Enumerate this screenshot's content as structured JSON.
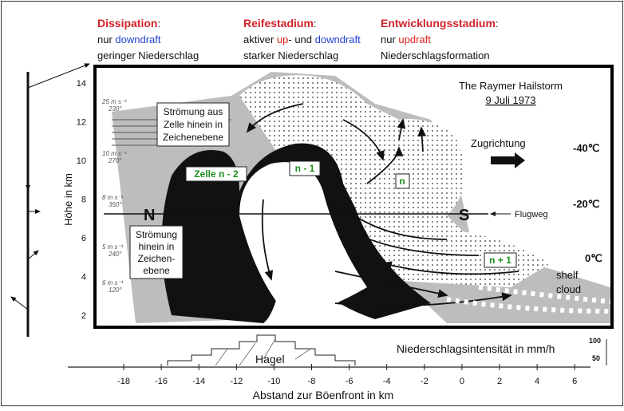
{
  "header": {
    "columns": [
      {
        "title": "Dissipation",
        "colon": ":",
        "line1": [
          "nur ",
          "downdraft"
        ],
        "line2": "geringer Niederschlag"
      },
      {
        "title": "Reifestadium",
        "colon": ":",
        "line1": [
          "aktiver ",
          "up",
          "- und ",
          "downdraft"
        ],
        "line2": "starker Niederschlag"
      },
      {
        "title": "Entwicklungsstadium",
        "colon": ":",
        "line1": [
          "nur ",
          "updraft"
        ],
        "line2": "Niederschlagsformation"
      }
    ]
  },
  "diagram": {
    "source": [
      "The Raymer Hailstorm",
      "9 Juli 1973"
    ],
    "direction": "Zugrichtung",
    "temperatures": [
      "-40℃",
      "-20℃",
      "0℃"
    ],
    "flight_path": "Flugweg",
    "shelf_cloud": [
      "shelf",
      "cloud"
    ],
    "north": "N",
    "south": "S",
    "outflow_box": [
      "Strömung aus",
      "Zelle hinein in",
      "Zeichenebene"
    ],
    "inflow_box": [
      "Strömung",
      "hinein in",
      "Zeichen-",
      "ebene"
    ],
    "cells": [
      "Zelle n - 2",
      "n - 1",
      "n",
      "n + 1"
    ],
    "winds": [
      [
        "25 m s⁻¹",
        "230°"
      ],
      [
        "10 m s⁻¹",
        "270°"
      ],
      [
        "8 m s⁻¹",
        "350°"
      ],
      [
        "5 m s⁻¹",
        "240°"
      ],
      [
        "6 m s⁻¹",
        "120°"
      ]
    ],
    "y_axis": {
      "label": "Höhe in km",
      "ticks": [
        "14",
        "12",
        "10",
        "8",
        "6",
        "4",
        "2"
      ]
    }
  },
  "precipitation": {
    "label": "Niederschlagsintensität in mm/h",
    "scale": [
      "100",
      "50"
    ],
    "hail": "Hagel"
  },
  "x_axis": {
    "label": "Abstand zur Böenfront in km",
    "ticks": [
      "-18",
      "-16",
      "-14",
      "-12",
      "-10",
      "-8",
      "-6",
      "-4",
      "-2",
      "0",
      "2",
      "4",
      "6"
    ]
  }
}
